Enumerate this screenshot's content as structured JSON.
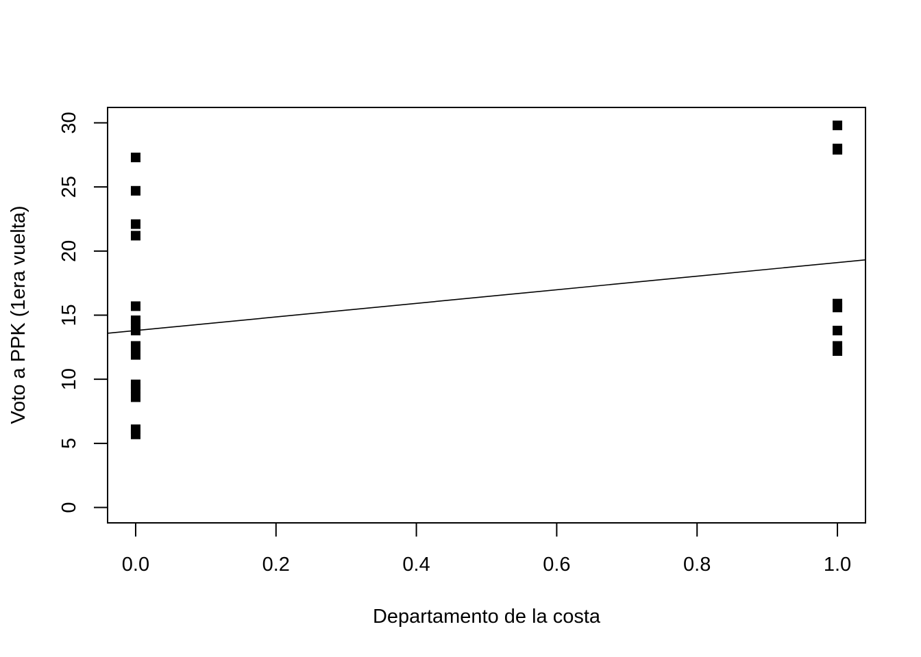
{
  "chart_data": {
    "type": "scatter",
    "title": "",
    "xlabel": "Departamento de la costa",
    "ylabel": "Voto a PPK (1era vuelta)",
    "xlim": [
      -0.04,
      1.04
    ],
    "ylim": [
      -1.2,
      31.2
    ],
    "x_ticks": [
      0.0,
      0.2,
      0.4,
      0.6,
      0.8,
      1.0
    ],
    "x_tick_labels": [
      "0.0",
      "0.2",
      "0.4",
      "0.6",
      "0.8",
      "1.0"
    ],
    "y_ticks": [
      0,
      5,
      10,
      15,
      20,
      25,
      30
    ],
    "y_tick_labels": [
      "0",
      "5",
      "10",
      "15",
      "20",
      "25",
      "30"
    ],
    "grid": false,
    "legend": "none",
    "marker": "filled-square",
    "series": [
      {
        "points": [
          {
            "x": 0,
            "y": 27.3
          },
          {
            "x": 0,
            "y": 24.7
          },
          {
            "x": 0,
            "y": 22.1
          },
          {
            "x": 0,
            "y": 21.2
          },
          {
            "x": 0,
            "y": 15.7
          },
          {
            "x": 0,
            "y": 14.6
          },
          {
            "x": 0,
            "y": 14.3
          },
          {
            "x": 0,
            "y": 13.8
          },
          {
            "x": 0,
            "y": 12.6
          },
          {
            "x": 0,
            "y": 11.9
          },
          {
            "x": 0,
            "y": 9.6
          },
          {
            "x": 0,
            "y": 9.3
          },
          {
            "x": 0,
            "y": 8.6
          },
          {
            "x": 0,
            "y": 6.1
          },
          {
            "x": 0,
            "y": 5.7
          },
          {
            "x": 1,
            "y": 29.8
          },
          {
            "x": 1,
            "y": 28.0
          },
          {
            "x": 1,
            "y": 27.9
          },
          {
            "x": 1,
            "y": 15.9
          },
          {
            "x": 1,
            "y": 15.6
          },
          {
            "x": 1,
            "y": 13.8
          },
          {
            "x": 1,
            "y": 12.6
          },
          {
            "x": 1,
            "y": 12.2
          }
        ]
      }
    ],
    "regression_line": {
      "intercept": 13.8,
      "slope": 5.3
    }
  }
}
